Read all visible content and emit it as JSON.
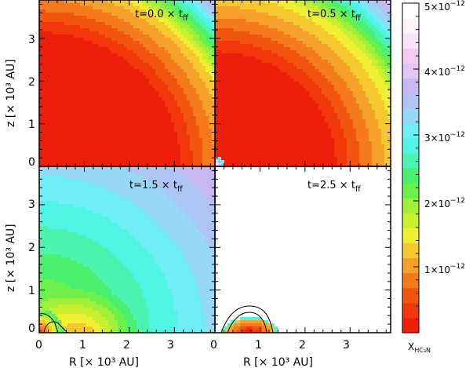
{
  "chart_data": {
    "type": "heatmap",
    "axes": {
      "x_ticks": [
        "0",
        "1",
        "2",
        "3"
      ],
      "y_ticks": [
        "0",
        "1",
        "2",
        "3"
      ],
      "xlabel_left": "R  [× 10³ AU]",
      "xlabel_right": "R  [× 10³ AU]",
      "ylabel_top": "z  [× 10³ AU]",
      "ylabel_bottom": "z  [× 10³ AU]",
      "x_range": [
        0,
        3.9
      ],
      "y_range": [
        0,
        3.9
      ]
    },
    "panels": [
      {
        "label": "t=0.0 × t",
        "sub": "ff"
      },
      {
        "label": "t=0.5 × t",
        "sub": "ff"
      },
      {
        "label": "t=1.5 × t",
        "sub": "ff"
      },
      {
        "label": "t=2.5 × t",
        "sub": "ff"
      }
    ],
    "colorbar": {
      "min": 0,
      "max": 5e-12,
      "ticks": [
        {
          "value": 1e-12,
          "mant": "1×10",
          "exp": "−12"
        },
        {
          "value": 2e-12,
          "mant": "2×10",
          "exp": "−12"
        },
        {
          "value": 3e-12,
          "mant": "3×10",
          "exp": "−12"
        },
        {
          "value": 4e-12,
          "mant": "4×10",
          "exp": "−12"
        },
        {
          "value": 5e-12,
          "mant": "5×10",
          "exp": "−12"
        }
      ],
      "label": "X",
      "label_sub": "HC₃N"
    },
    "colors": {
      "levels": [
        "#ee1f0a",
        "#f2380a",
        "#f25510",
        "#f57a1c",
        "#f5a028",
        "#f5c830",
        "#f0ef32",
        "#c8f030",
        "#a0f03a",
        "#6ef04a",
        "#4af070",
        "#4cf4b0",
        "#50f4e4",
        "#70eef5",
        "#96d8f5",
        "#aec4f2",
        "#c8b8f2",
        "#e0c8f5",
        "#f2ccf0",
        "#f8e6f8",
        "#fbf4fb",
        "#ffffff"
      ]
    }
  }
}
